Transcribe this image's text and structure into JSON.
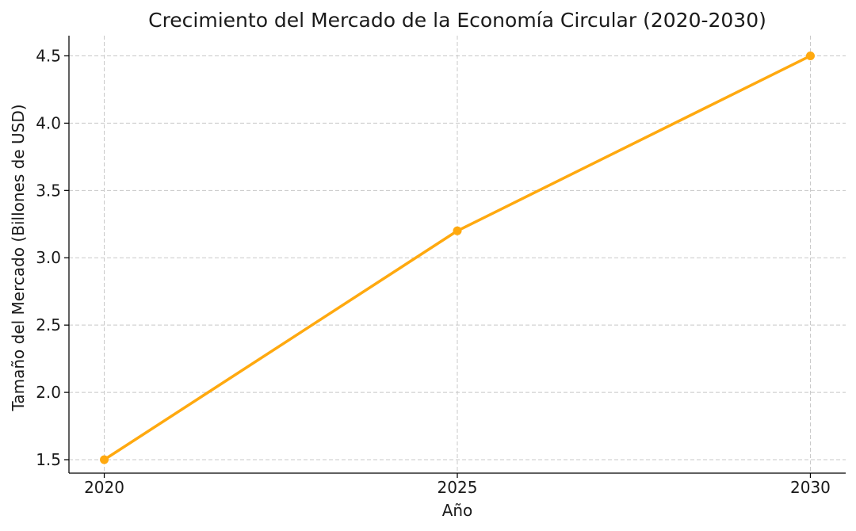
{
  "chart_data": {
    "type": "line",
    "title": "Crecimiento del Mercado de la Economía Circular (2020-2030)",
    "xlabel": "Año",
    "ylabel": "Tamaño del Mercado (Billones de USD)",
    "x": [
      2020,
      2025,
      2030
    ],
    "xticks": [
      "2020",
      "2025",
      "2030"
    ],
    "yticks": [
      "1.5",
      "2.0",
      "2.5",
      "3.0",
      "3.5",
      "4.0",
      "4.5"
    ],
    "xlim": [
      2019.5,
      2030.5
    ],
    "ylim": [
      1.4,
      4.65
    ],
    "grid": true,
    "series": [
      {
        "values": [
          1.5,
          3.2,
          4.5
        ],
        "color": "#FFA90F",
        "marker": "circle"
      }
    ]
  }
}
